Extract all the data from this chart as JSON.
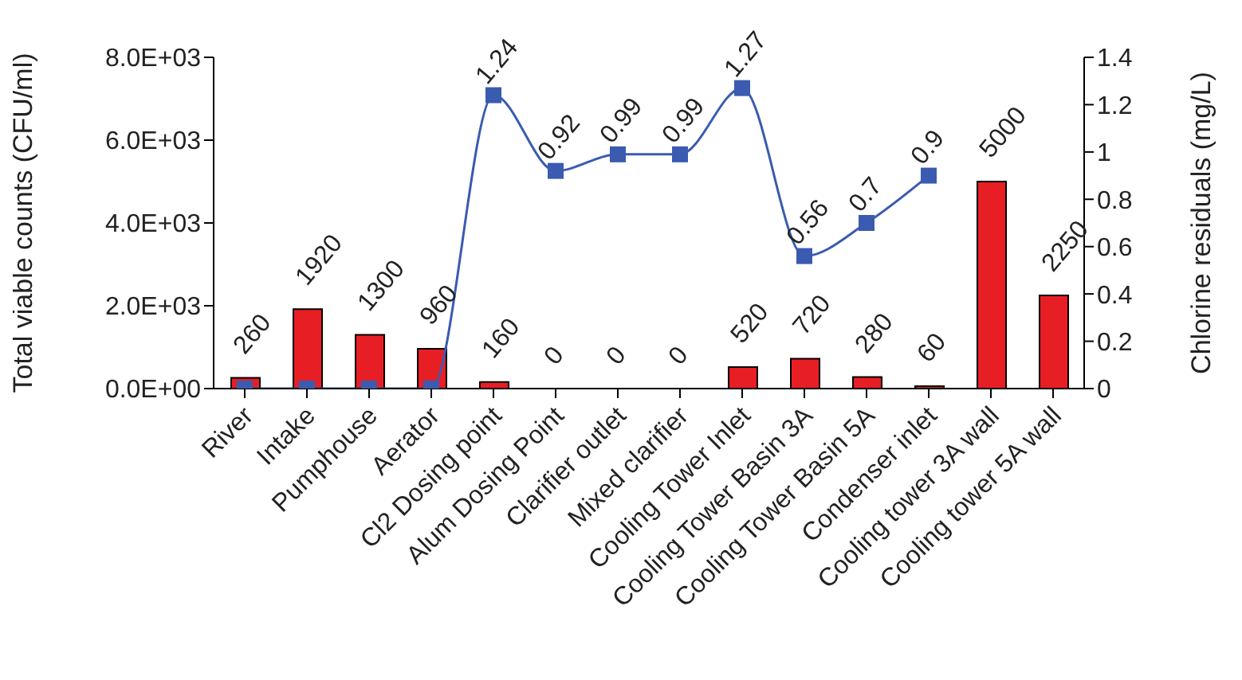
{
  "chart_data": {
    "type": "bar",
    "ylabel": "Total viable counts (CFU/ml)",
    "y2label": "Chlorine residuals (mg/L)",
    "categories": [
      "River",
      "Intake",
      "Pumphouse",
      "Aerator",
      "Cl2 Dosing point",
      "Alum Dosing Point",
      "Clarifier outlet",
      "Mixed clarifier",
      "Cooling Tower Inlet",
      "Cooling Tower Basin 3A",
      "Cooling Tower Basin 5A",
      "Condenser inlet",
      "Cooling tower 3A wall",
      "Cooling tower 5A wall"
    ],
    "series": [
      {
        "color": "#e81e25",
        "values": [
          260,
          1920,
          1300,
          960,
          160,
          0,
          0,
          0,
          520,
          720,
          280,
          60,
          5000,
          2250
        ],
        "value_labels": [
          "260",
          "1920",
          "1300",
          "960",
          "160",
          "0",
          "0",
          "0",
          "520",
          "720",
          "280",
          "60",
          "5000",
          "2250"
        ]
      },
      {
        "type": "line",
        "axis": "y2",
        "color": "#3a5bb0",
        "marker": "square",
        "values": [
          0,
          0,
          0,
          0,
          1.24,
          0.92,
          0.99,
          0.99,
          1.27,
          0.56,
          0.7,
          0.9,
          null,
          null
        ],
        "value_labels": [
          null,
          null,
          null,
          null,
          "1.24",
          "0.92",
          "0.99",
          "0.99",
          "1.27",
          "0.56",
          "0.7",
          "0.9",
          null,
          null
        ]
      }
    ],
    "ylim": [
      0,
      8000
    ],
    "yticks": [
      {
        "value": 0,
        "label": "0.0E+00"
      },
      {
        "value": 2000,
        "label": "2.0E+03"
      },
      {
        "value": 4000,
        "label": "4.0E+03"
      },
      {
        "value": 6000,
        "label": "6.0E+03"
      },
      {
        "value": 8000,
        "label": "8.0E+03"
      }
    ],
    "y2lim": [
      0,
      1.4
    ],
    "y2ticks": [
      0,
      0.2,
      0.4,
      0.6,
      0.8,
      1,
      1.2,
      1.4
    ],
    "grid": false,
    "legend": false
  }
}
